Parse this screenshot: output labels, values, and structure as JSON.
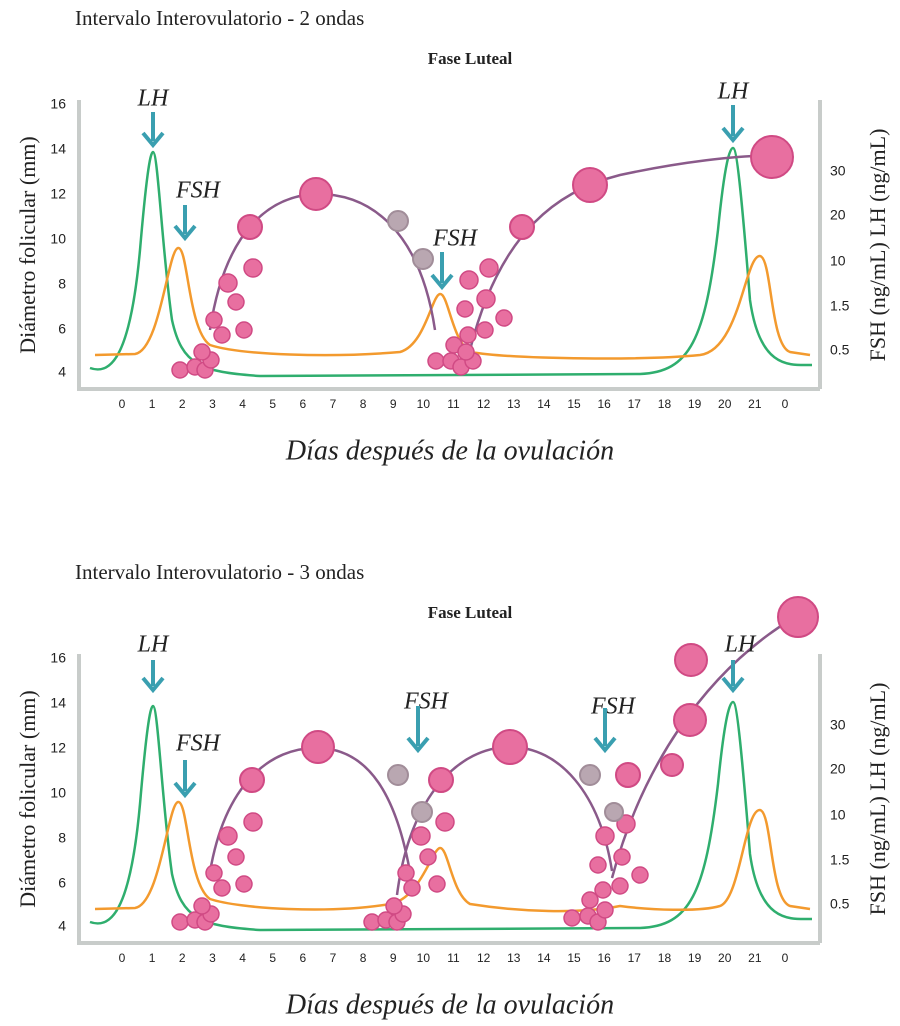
{
  "panels": [
    {
      "title": "Intervalo Interovulatorio - 2 ondas",
      "subtitle": "Fase Luteal",
      "y_axis_label": "Diámetro folicular (mm)",
      "y_ticks": [
        "16",
        "14",
        "12",
        "10",
        "8",
        "6",
        "4"
      ],
      "y2_axis_label": "FSH (ng/mL) LH (ng/mL)",
      "y2_ticks": [
        "30",
        "20",
        "10",
        "1.5",
        "0.5"
      ],
      "x_ticks": [
        "0",
        "1",
        "2",
        "3",
        "4",
        "5",
        "6",
        "7",
        "8",
        "9",
        "10",
        "11",
        "12",
        "13",
        "14",
        "15",
        "16",
        "17",
        "18",
        "19",
        "20",
        "21",
        "0"
      ],
      "x_axis_label": "Días después de la ovulación",
      "annotations": [
        "LH",
        "FSH",
        "FSH",
        "LH"
      ]
    },
    {
      "title": "Intervalo Interovulatorio - 3 ondas",
      "subtitle": "Fase Luteal",
      "y_axis_label": "Diámetro folicular (mm)",
      "y_ticks": [
        "16",
        "14",
        "12",
        "10",
        "8",
        "6",
        "4"
      ],
      "y2_axis_label": "FSH (ng/mL) LH (ng/mL)",
      "y2_ticks": [
        "30",
        "20",
        "10",
        "1.5",
        "0.5"
      ],
      "x_ticks": [
        "0",
        "1",
        "2",
        "3",
        "4",
        "5",
        "6",
        "7",
        "8",
        "9",
        "10",
        "11",
        "12",
        "13",
        "14",
        "15",
        "16",
        "17",
        "18",
        "19",
        "20",
        "21",
        "0"
      ],
      "x_axis_label": "Días después de la ovulación",
      "annotations": [
        "LH",
        "FSH",
        "FSH",
        "FSH",
        "LH"
      ]
    }
  ]
}
